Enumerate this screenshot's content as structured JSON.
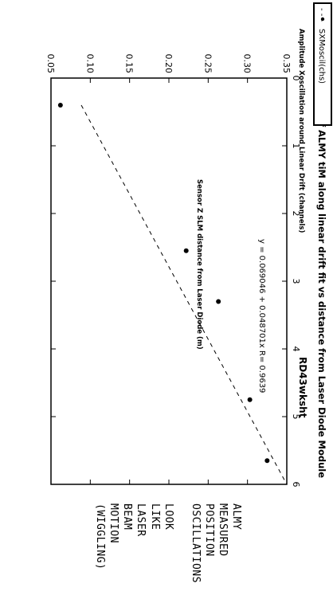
{
  "chart_data": {
    "type": "scatter",
    "title": "Averaged Amplitude of ALMY tiM along linear drift fit vs distance from Laser Diode Module",
    "corner_tag": "RD43wksht",
    "xlabel": "Sensor Z SLM distance from Laser Diode (m)",
    "ylabel": "Amplitude Xoscillation around Linear Drift (channels)",
    "xlim": [
      0,
      6
    ],
    "ylim": [
      0.05,
      0.35
    ],
    "x_ticks": [
      "0",
      "1",
      "2",
      "3",
      "4",
      "5",
      "6"
    ],
    "y_ticks": [
      "0.05",
      "0.10",
      "0.15",
      "0.20",
      "0.25",
      "0.30",
      "0.35"
    ],
    "grid": false,
    "legend_position": "top-right",
    "series": [
      {
        "name": "SXMoscil(chs)",
        "x": [
          0.4,
          2.55,
          3.3,
          4.75,
          5.65
        ],
        "y": [
          0.062,
          0.222,
          0.263,
          0.303,
          0.325
        ]
      }
    ],
    "fit": {
      "intercept": 0.069046,
      "slope": 0.048701,
      "label": "y = 0.069046 + 0.048701x  R= 0.9639",
      "legend_marker": "- - -"
    },
    "handwritten_note": [
      "ALMY",
      "MEASURED",
      "POSITION",
      "OSCILLATIONS",
      "LOOK",
      "LIKE",
      "LASER",
      "BEAM",
      "MOTION",
      "(WIGGLING)"
    ]
  }
}
